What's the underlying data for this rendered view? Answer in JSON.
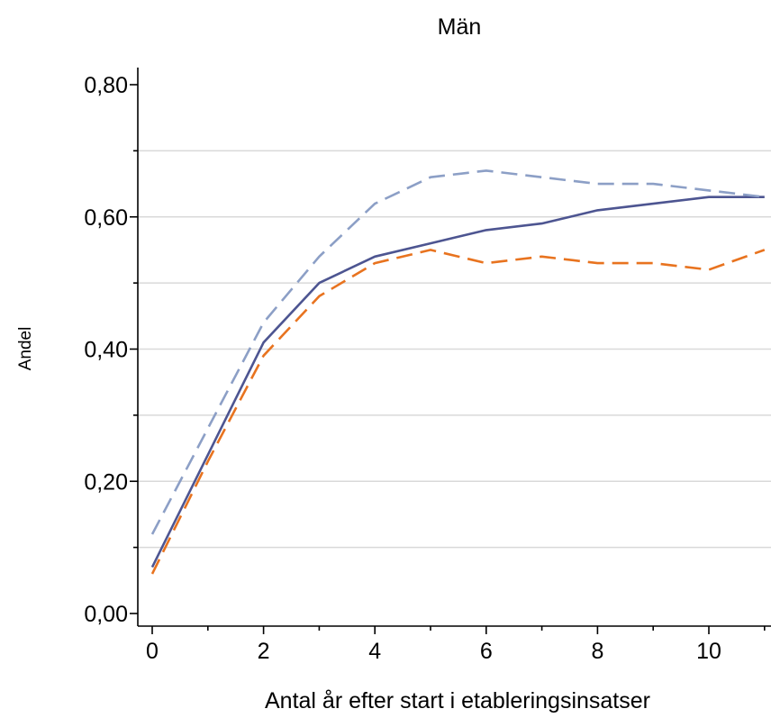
{
  "chart_data": {
    "type": "line",
    "title": "Män",
    "xlabel": "Antal år efter start i etableringsinsatser",
    "ylabel": "Andel",
    "xlim": [
      0,
      11
    ],
    "ylim": [
      0,
      0.8
    ],
    "x_ticks": [
      0,
      2,
      4,
      6,
      8,
      10
    ],
    "x_tick_labels": [
      "0",
      "2",
      "4",
      "6",
      "8",
      "10"
    ],
    "y_ticks": [
      0,
      0.2,
      0.4,
      0.6,
      0.8
    ],
    "y_tick_labels": [
      "0,00",
      "0,20",
      "0,40",
      "0,60",
      "0,80"
    ],
    "grid": true,
    "x": [
      0,
      1,
      2,
      3,
      4,
      5,
      6,
      7,
      8,
      9,
      10,
      11
    ],
    "series": [
      {
        "style": "solid",
        "color": "#4d5591",
        "values": [
          0.07,
          0.24,
          0.41,
          0.5,
          0.54,
          0.56,
          0.58,
          0.59,
          0.61,
          0.62,
          0.63,
          0.63
        ]
      },
      {
        "style": "dashed",
        "color": "#8c9fc6",
        "values": [
          0.12,
          0.28,
          0.44,
          0.54,
          0.62,
          0.66,
          0.67,
          0.66,
          0.65,
          0.65,
          0.64,
          0.63
        ]
      },
      {
        "style": "dashed",
        "color": "#e8731f",
        "values": [
          0.06,
          0.23,
          0.39,
          0.48,
          0.53,
          0.55,
          0.53,
          0.54,
          0.53,
          0.53,
          0.52,
          0.55
        ]
      }
    ]
  }
}
